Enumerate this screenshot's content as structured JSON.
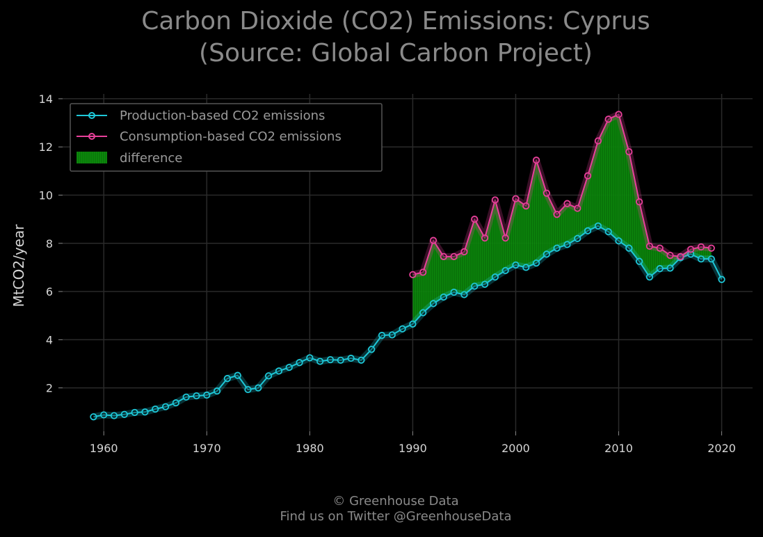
{
  "title": {
    "line1": "Carbon Dioxide (CO2) Emissions: Cyprus",
    "line2": "(Source: Global Carbon Project)"
  },
  "footer": {
    "line1": "© Greenhouse Data",
    "line2": "Find us on Twitter @GreenhouseData"
  },
  "colors": {
    "production": "#1ec8d8",
    "consumption": "#e8409a",
    "difference": "#0a8a0a",
    "grid": "#2a2a2a"
  },
  "chart_data": {
    "type": "line",
    "title": "Carbon Dioxide (CO2) Emissions: Cyprus (Source: Global Carbon Project)",
    "xlabel": "",
    "ylabel": "MtCO2/year",
    "xlim": [
      1956,
      2023
    ],
    "ylim": [
      0.2,
      14.2
    ],
    "xticks": [
      1960,
      1970,
      1980,
      1990,
      2000,
      2010,
      2020
    ],
    "yticks": [
      2,
      4,
      6,
      8,
      10,
      12,
      14
    ],
    "grid": true,
    "legend": {
      "placement": "top-left",
      "entries": [
        "Production-based CO2 emissions",
        "Consumption-based CO2 emissions",
        "difference"
      ]
    },
    "series": [
      {
        "name": "Production-based CO2 emissions",
        "x": [
          1959,
          1960,
          1961,
          1962,
          1963,
          1964,
          1965,
          1966,
          1967,
          1968,
          1969,
          1970,
          1971,
          1972,
          1973,
          1974,
          1975,
          1976,
          1977,
          1978,
          1979,
          1980,
          1981,
          1982,
          1983,
          1984,
          1985,
          1986,
          1987,
          1988,
          1989,
          1990,
          1991,
          1992,
          1993,
          1994,
          1995,
          1996,
          1997,
          1998,
          1999,
          2000,
          2001,
          2002,
          2003,
          2004,
          2005,
          2006,
          2007,
          2008,
          2009,
          2010,
          2011,
          2012,
          2013,
          2014,
          2015,
          2016,
          2017,
          2018,
          2019,
          2020
        ],
        "values": [
          0.8,
          0.88,
          0.85,
          0.9,
          0.98,
          1.0,
          1.12,
          1.22,
          1.38,
          1.62,
          1.67,
          1.7,
          1.87,
          2.39,
          2.52,
          1.93,
          2.0,
          2.5,
          2.7,
          2.85,
          3.05,
          3.25,
          3.1,
          3.17,
          3.15,
          3.23,
          3.15,
          3.6,
          4.18,
          4.2,
          4.45,
          4.65,
          5.12,
          5.5,
          5.77,
          5.97,
          5.87,
          6.22,
          6.3,
          6.6,
          6.87,
          7.1,
          7.0,
          7.18,
          7.55,
          7.8,
          7.95,
          8.2,
          8.52,
          8.72,
          8.48,
          8.1,
          7.8,
          7.25,
          6.6,
          6.95,
          6.97,
          7.4,
          7.55,
          7.35,
          7.35,
          6.5
        ]
      },
      {
        "name": "Consumption-based CO2 emissions",
        "x": [
          1990,
          1991,
          1992,
          1993,
          1994,
          1995,
          1996,
          1997,
          1998,
          1999,
          2000,
          2001,
          2002,
          2003,
          2004,
          2005,
          2006,
          2007,
          2008,
          2009,
          2010,
          2011,
          2012,
          2013,
          2014,
          2015,
          2016,
          2017,
          2018,
          2019
        ],
        "values": [
          6.7,
          6.8,
          8.12,
          7.45,
          7.45,
          7.65,
          9.0,
          8.22,
          9.8,
          8.22,
          9.85,
          9.55,
          11.45,
          10.08,
          9.2,
          9.65,
          9.45,
          10.8,
          12.25,
          13.15,
          13.35,
          11.8,
          9.72,
          7.88,
          7.8,
          7.5,
          7.45,
          7.75,
          7.85,
          7.8
        ]
      }
    ]
  }
}
